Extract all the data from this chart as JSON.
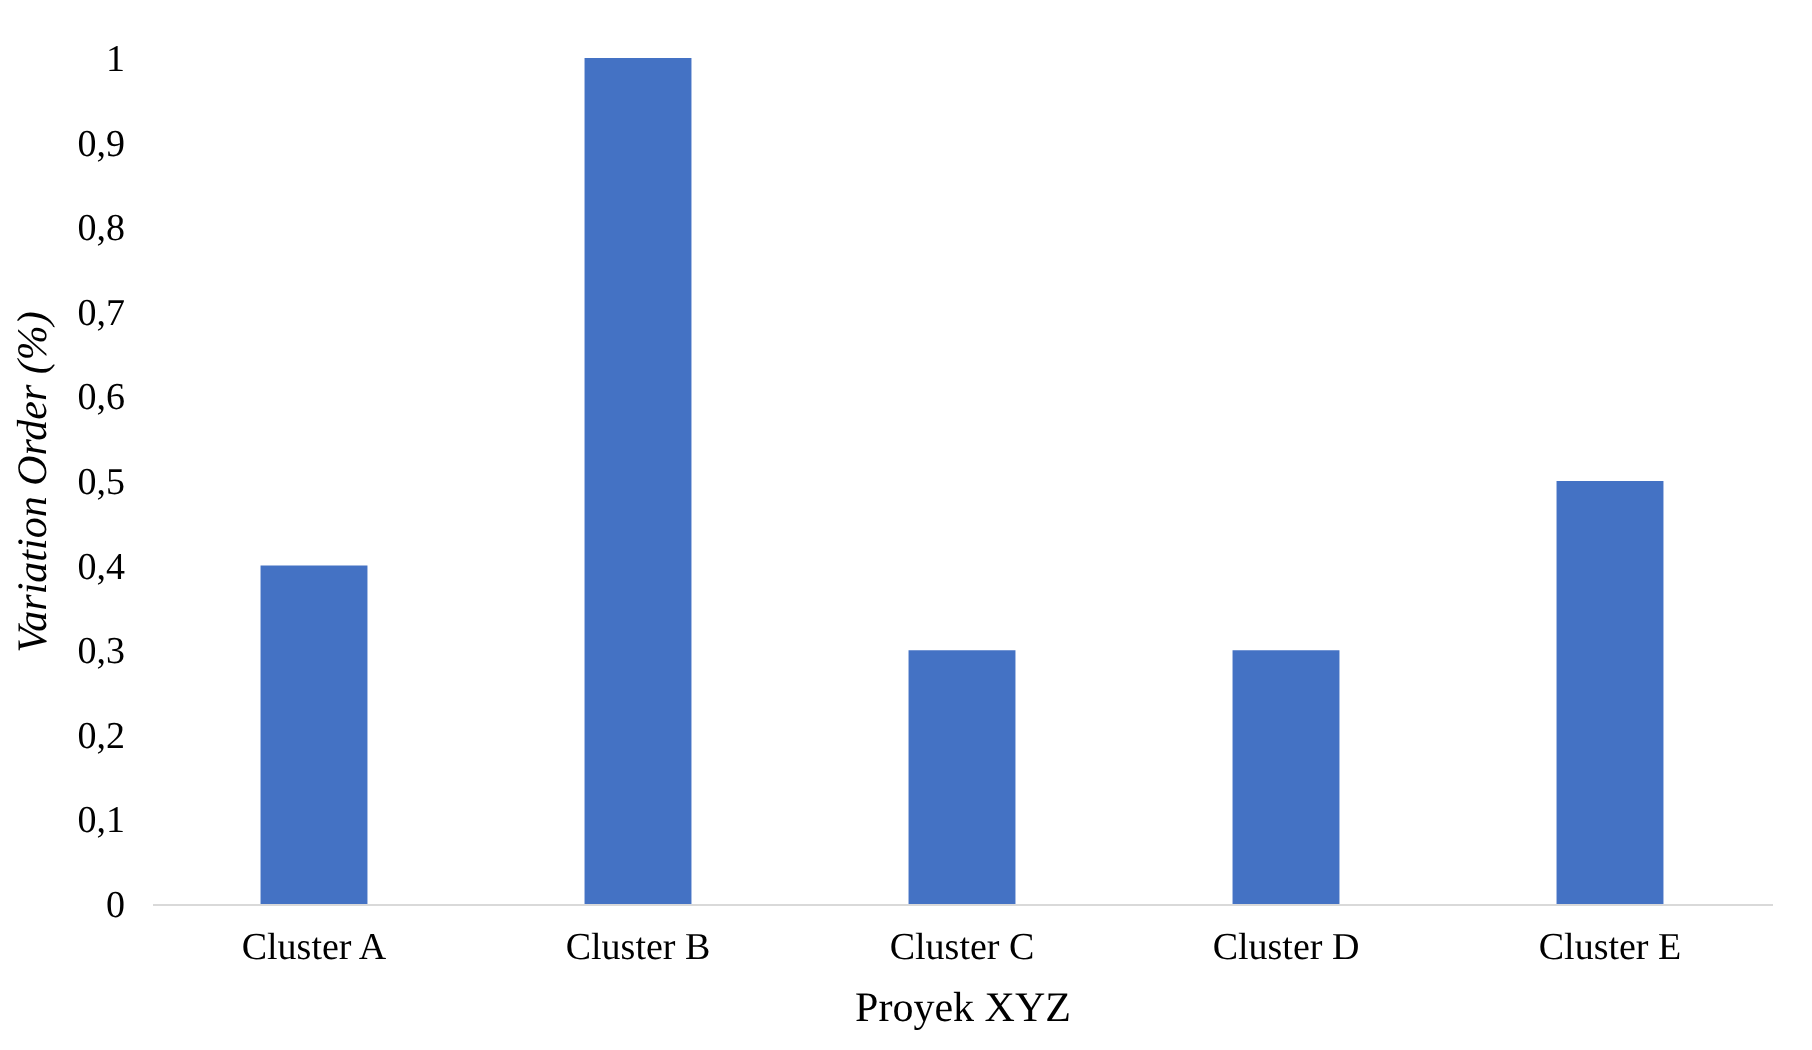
{
  "chart_data": {
    "type": "bar",
    "xlabel": "Proyek XYZ",
    "ylabel": "Variation Order (%)",
    "categories": [
      "Cluster A",
      "Cluster B",
      "Cluster C",
      "Cluster D",
      "Cluster E"
    ],
    "values": [
      0.4,
      1,
      0.3,
      0.3,
      0.5
    ],
    "color": "#4472c4",
    "ylim": [
      0,
      1
    ],
    "yticks": [
      0,
      {
        "value": 0.1,
        "label": "0,1"
      },
      {
        "value": 0.2,
        "label": "0,2"
      },
      {
        "value": 0.3,
        "label": "0,3"
      },
      {
        "value": 0.4,
        "label": "0,4"
      },
      {
        "value": 0.5,
        "label": "0,5"
      },
      {
        "value": 0.6,
        "label": "0,6"
      },
      {
        "value": 0.7,
        "label": "0,7"
      },
      {
        "value": 0.8,
        "label": "0,8"
      },
      {
        "value": 0.9,
        "label": "0,9"
      },
      1
    ],
    "grid": false
  }
}
